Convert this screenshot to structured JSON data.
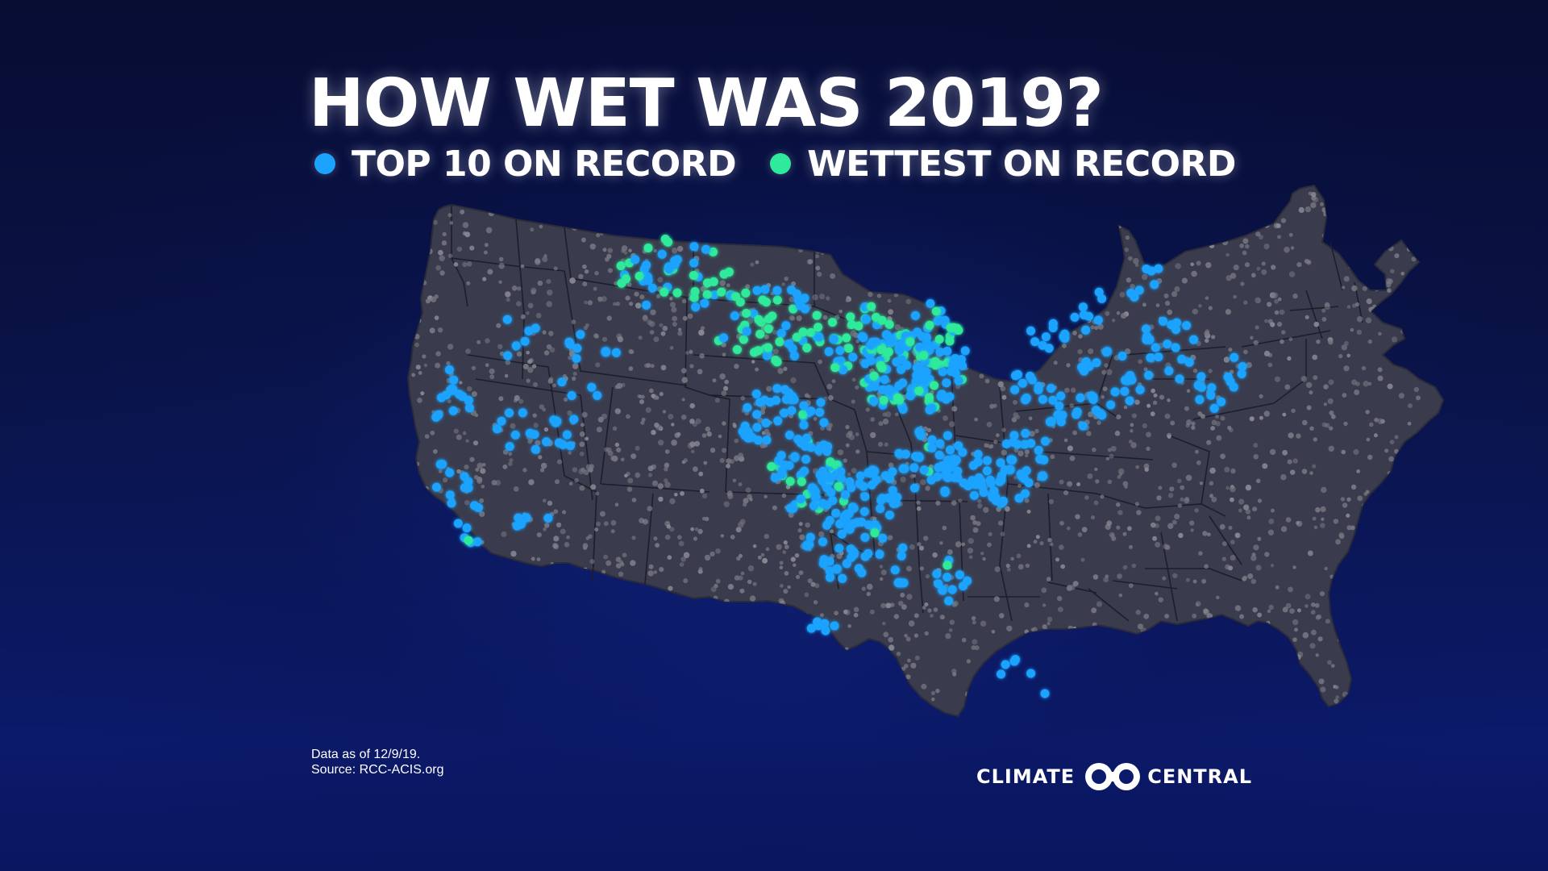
{
  "title": "HOW WET WAS 2019?",
  "legend": {
    "items": [
      {
        "label": "TOP 10 ON RECORD",
        "color": "#1aa3ff",
        "icon": "blue-dot-icon"
      },
      {
        "label": "WETTEST ON RECORD",
        "color": "#2eea9a",
        "icon": "green-dot-icon"
      }
    ]
  },
  "map": {
    "region": "Contiguous United States",
    "land_color": "#3a3c4d",
    "border_color": "#1c1e2c",
    "station_color": "#7a7b86"
  },
  "footnote": {
    "line1": "Data as of 12/9/19.",
    "line2": "Source: RCC-ACIS.org"
  },
  "logo": {
    "left_word": "CLIMATE",
    "right_word": "CENTRAL",
    "icon": "climate-central-rings-icon"
  }
}
